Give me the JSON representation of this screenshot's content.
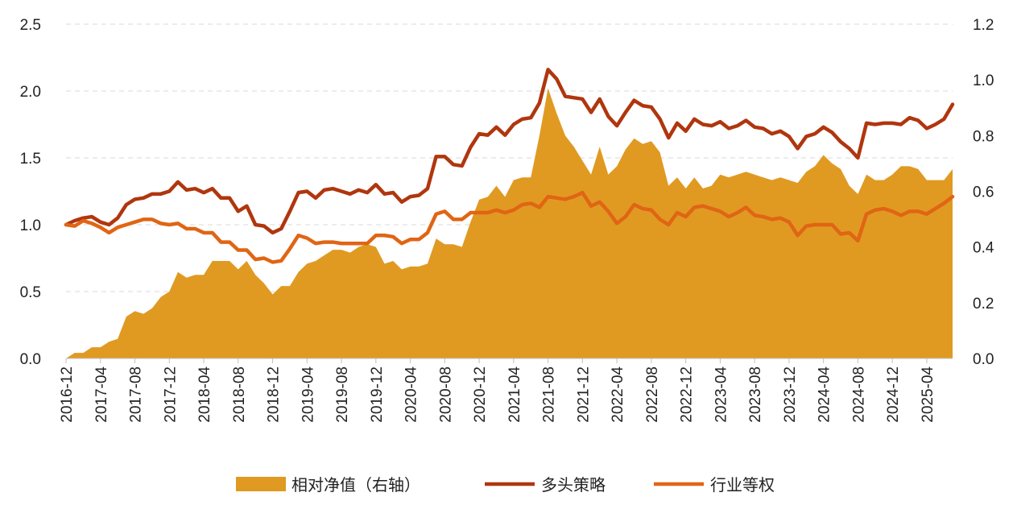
{
  "chart_data": {
    "type": "line",
    "x_dates": [
      "2016-12",
      "2017-01",
      "2017-02",
      "2017-03",
      "2017-04",
      "2017-05",
      "2017-06",
      "2017-07",
      "2017-08",
      "2017-09",
      "2017-10",
      "2017-11",
      "2017-12",
      "2018-01",
      "2018-02",
      "2018-03",
      "2018-04",
      "2018-05",
      "2018-06",
      "2018-07",
      "2018-08",
      "2018-09",
      "2018-10",
      "2018-11",
      "2018-12",
      "2019-01",
      "2019-02",
      "2019-03",
      "2019-04",
      "2019-05",
      "2019-06",
      "2019-07",
      "2019-08",
      "2019-09",
      "2019-10",
      "2019-11",
      "2019-12",
      "2020-01",
      "2020-02",
      "2020-03",
      "2020-04",
      "2020-05",
      "2020-06",
      "2020-07",
      "2020-08",
      "2020-09",
      "2020-10",
      "2020-11",
      "2020-12",
      "2021-01",
      "2021-02",
      "2021-03",
      "2021-04",
      "2021-05",
      "2021-06",
      "2021-07",
      "2021-08",
      "2021-09",
      "2021-10",
      "2021-11",
      "2021-12",
      "2022-01",
      "2022-02",
      "2022-03",
      "2022-04",
      "2022-05",
      "2022-06",
      "2022-07",
      "2022-08",
      "2022-09",
      "2022-10",
      "2022-11",
      "2022-12",
      "2023-01",
      "2023-02",
      "2023-03",
      "2023-04",
      "2023-05",
      "2023-06",
      "2023-07",
      "2023-08",
      "2023-09",
      "2023-10",
      "2023-11",
      "2023-12",
      "2024-01",
      "2024-02",
      "2024-03",
      "2024-04",
      "2024-05",
      "2024-06",
      "2024-07",
      "2024-08",
      "2024-09",
      "2024-10",
      "2024-11",
      "2024-12",
      "2025-01",
      "2025-02",
      "2025-03",
      "2025-04",
      "2025-05",
      "2025-06",
      "2025-07"
    ],
    "x_tick_labels": [
      "2016-12",
      "2017-04",
      "2017-08",
      "2017-12",
      "2018-04",
      "2018-08",
      "2018-12",
      "2019-04",
      "2019-08",
      "2019-12",
      "2020-04",
      "2020-08",
      "2020-12",
      "2021-04",
      "2021-08",
      "2021-12",
      "2022-04",
      "2022-08",
      "2022-12",
      "2023-04",
      "2023-08",
      "2023-12",
      "2024-04",
      "2024-08",
      "2024-12",
      "2025-04"
    ],
    "y_left": {
      "range": [
        0,
        2.5
      ],
      "ticks": [
        "0.0",
        "0.5",
        "1.0",
        "1.5",
        "2.0",
        "2.5"
      ]
    },
    "y_right": {
      "range": [
        0,
        1.2
      ],
      "ticks": [
        "0.0",
        "0.2",
        "0.4",
        "0.6",
        "0.8",
        "1.0",
        "1.2"
      ]
    },
    "grid": "horizontal dashed",
    "legend_position": "bottom",
    "series": [
      {
        "name": "相对净值（右轴）",
        "type": "area",
        "axis": "right",
        "color": "#E09A22",
        "values": [
          0.0,
          0.02,
          0.02,
          0.04,
          0.04,
          0.06,
          0.07,
          0.15,
          0.17,
          0.16,
          0.18,
          0.22,
          0.24,
          0.31,
          0.29,
          0.3,
          0.3,
          0.35,
          0.35,
          0.35,
          0.32,
          0.35,
          0.3,
          0.27,
          0.23,
          0.26,
          0.26,
          0.31,
          0.34,
          0.35,
          0.37,
          0.39,
          0.39,
          0.38,
          0.4,
          0.41,
          0.4,
          0.34,
          0.35,
          0.32,
          0.33,
          0.33,
          0.34,
          0.43,
          0.41,
          0.41,
          0.4,
          0.49,
          0.57,
          0.58,
          0.62,
          0.58,
          0.64,
          0.65,
          0.65,
          0.8,
          0.97,
          0.88,
          0.8,
          0.76,
          0.71,
          0.66,
          0.76,
          0.66,
          0.69,
          0.75,
          0.79,
          0.77,
          0.78,
          0.74,
          0.62,
          0.65,
          0.61,
          0.65,
          0.61,
          0.62,
          0.66,
          0.65,
          0.66,
          0.67,
          0.66,
          0.65,
          0.64,
          0.65,
          0.64,
          0.63,
          0.67,
          0.69,
          0.73,
          0.7,
          0.68,
          0.62,
          0.59,
          0.66,
          0.64,
          0.64,
          0.66,
          0.69,
          0.69,
          0.68,
          0.64,
          0.64,
          0.64,
          0.68
        ]
      },
      {
        "name": "多头策略",
        "type": "line",
        "axis": "left",
        "color": "#B0360E",
        "values": [
          1.0,
          1.03,
          1.05,
          1.06,
          1.02,
          1.0,
          1.05,
          1.15,
          1.19,
          1.2,
          1.23,
          1.23,
          1.25,
          1.32,
          1.26,
          1.27,
          1.24,
          1.27,
          1.2,
          1.2,
          1.1,
          1.14,
          1.0,
          0.99,
          0.94,
          0.97,
          1.1,
          1.24,
          1.25,
          1.2,
          1.26,
          1.27,
          1.25,
          1.23,
          1.26,
          1.24,
          1.3,
          1.23,
          1.24,
          1.17,
          1.21,
          1.22,
          1.27,
          1.51,
          1.51,
          1.45,
          1.44,
          1.58,
          1.68,
          1.67,
          1.73,
          1.67,
          1.75,
          1.79,
          1.8,
          1.91,
          2.16,
          2.09,
          1.96,
          1.95,
          1.94,
          1.84,
          1.94,
          1.81,
          1.74,
          1.84,
          1.93,
          1.89,
          1.88,
          1.79,
          1.65,
          1.76,
          1.7,
          1.79,
          1.75,
          1.74,
          1.77,
          1.72,
          1.74,
          1.78,
          1.73,
          1.72,
          1.68,
          1.7,
          1.66,
          1.57,
          1.66,
          1.68,
          1.73,
          1.69,
          1.62,
          1.57,
          1.5,
          1.76,
          1.75,
          1.76,
          1.76,
          1.75,
          1.8,
          1.78,
          1.72,
          1.75,
          1.79,
          1.9
        ]
      },
      {
        "name": "行业等权",
        "type": "line",
        "axis": "left",
        "color": "#E06514",
        "values": [
          1.0,
          0.99,
          1.03,
          1.01,
          0.98,
          0.94,
          0.98,
          1.0,
          1.02,
          1.04,
          1.04,
          1.01,
          1.0,
          1.01,
          0.97,
          0.97,
          0.94,
          0.94,
          0.87,
          0.87,
          0.81,
          0.81,
          0.74,
          0.75,
          0.72,
          0.73,
          0.82,
          0.92,
          0.9,
          0.86,
          0.87,
          0.87,
          0.86,
          0.86,
          0.86,
          0.86,
          0.92,
          0.92,
          0.91,
          0.86,
          0.89,
          0.89,
          0.94,
          1.08,
          1.1,
          1.04,
          1.04,
          1.09,
          1.09,
          1.09,
          1.11,
          1.09,
          1.11,
          1.15,
          1.16,
          1.13,
          1.21,
          1.2,
          1.19,
          1.21,
          1.24,
          1.14,
          1.17,
          1.1,
          1.01,
          1.06,
          1.15,
          1.12,
          1.11,
          1.04,
          1.0,
          1.09,
          1.06,
          1.13,
          1.14,
          1.12,
          1.1,
          1.06,
          1.09,
          1.13,
          1.07,
          1.06,
          1.04,
          1.05,
          1.02,
          0.92,
          0.99,
          1.0,
          1.0,
          1.0,
          0.93,
          0.94,
          0.88,
          1.08,
          1.11,
          1.12,
          1.1,
          1.07,
          1.1,
          1.1,
          1.08,
          1.12,
          1.16,
          1.21
        ]
      }
    ]
  }
}
